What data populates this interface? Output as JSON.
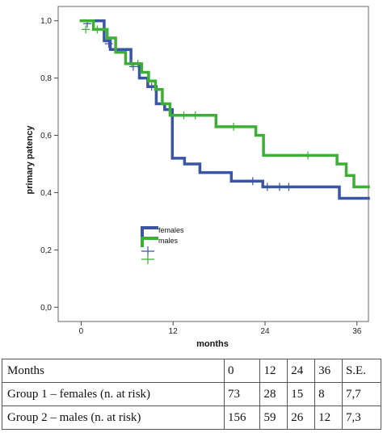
{
  "chart_data": {
    "type": "line",
    "subtype": "kaplan-meier step",
    "xlabel": "months",
    "ylabel": "primary patency",
    "xlim": [
      -3,
      37.5
    ],
    "ylim": [
      -0.05,
      1.05
    ],
    "x_ticks": [
      "0",
      "12",
      "24",
      "36"
    ],
    "y_ticks": [
      "0,0",
      "0,2",
      "0,4",
      "0,6",
      "0,8",
      "1,0"
    ],
    "grid": false,
    "legend_position": "center-left",
    "series": [
      {
        "name": "females",
        "color": "#3a54a6",
        "steps": [
          [
            0,
            1.0
          ],
          [
            3,
            0.93
          ],
          [
            3.8,
            0.9
          ],
          [
            6.5,
            0.85
          ],
          [
            7.6,
            0.8
          ],
          [
            8.7,
            0.77
          ],
          [
            9.8,
            0.71
          ],
          [
            10.9,
            0.69
          ],
          [
            11.9,
            0.52
          ],
          [
            13.5,
            0.5
          ],
          [
            15.5,
            0.47
          ],
          [
            19.6,
            0.44
          ],
          [
            23.7,
            0.42
          ],
          [
            33.7,
            0.38
          ],
          [
            37.5,
            0.38
          ]
        ],
        "censored": [
          [
            0.8,
            0.99
          ],
          [
            3.6,
            0.92
          ],
          [
            6.8,
            0.84
          ],
          [
            9.2,
            0.77
          ],
          [
            22.4,
            0.44
          ],
          [
            24.3,
            0.42
          ],
          [
            25.9,
            0.42
          ],
          [
            27.1,
            0.42
          ]
        ]
      },
      {
        "name": "males",
        "color": "#3cb034",
        "steps": [
          [
            0,
            1.0
          ],
          [
            1.6,
            0.97
          ],
          [
            3.4,
            0.94
          ],
          [
            4.5,
            0.89
          ],
          [
            5.8,
            0.85
          ],
          [
            7.9,
            0.82
          ],
          [
            8.8,
            0.79
          ],
          [
            9.7,
            0.76
          ],
          [
            10.6,
            0.71
          ],
          [
            11.6,
            0.67
          ],
          [
            17.6,
            0.63
          ],
          [
            22.8,
            0.6
          ],
          [
            23.8,
            0.53
          ],
          [
            33.4,
            0.5
          ],
          [
            34.6,
            0.46
          ],
          [
            35.6,
            0.42
          ],
          [
            37.5,
            0.42
          ]
        ],
        "censored": [
          [
            0.6,
            0.97
          ],
          [
            2.1,
            0.97
          ],
          [
            6.6,
            0.85
          ],
          [
            7.4,
            0.85
          ],
          [
            13.4,
            0.67
          ],
          [
            14.9,
            0.67
          ],
          [
            19.9,
            0.63
          ],
          [
            29.6,
            0.53
          ]
        ]
      }
    ]
  },
  "table": {
    "header": [
      "Months",
      "0",
      "12",
      "24",
      "36",
      "S.E."
    ],
    "rows": [
      [
        "Group 1 – females (n. at risk)",
        "73",
        "28",
        "15",
        "8",
        "7,7"
      ],
      [
        "Group 2 – males (n. at risk)",
        "156",
        "59",
        "26",
        "12",
        "7,3"
      ]
    ]
  }
}
